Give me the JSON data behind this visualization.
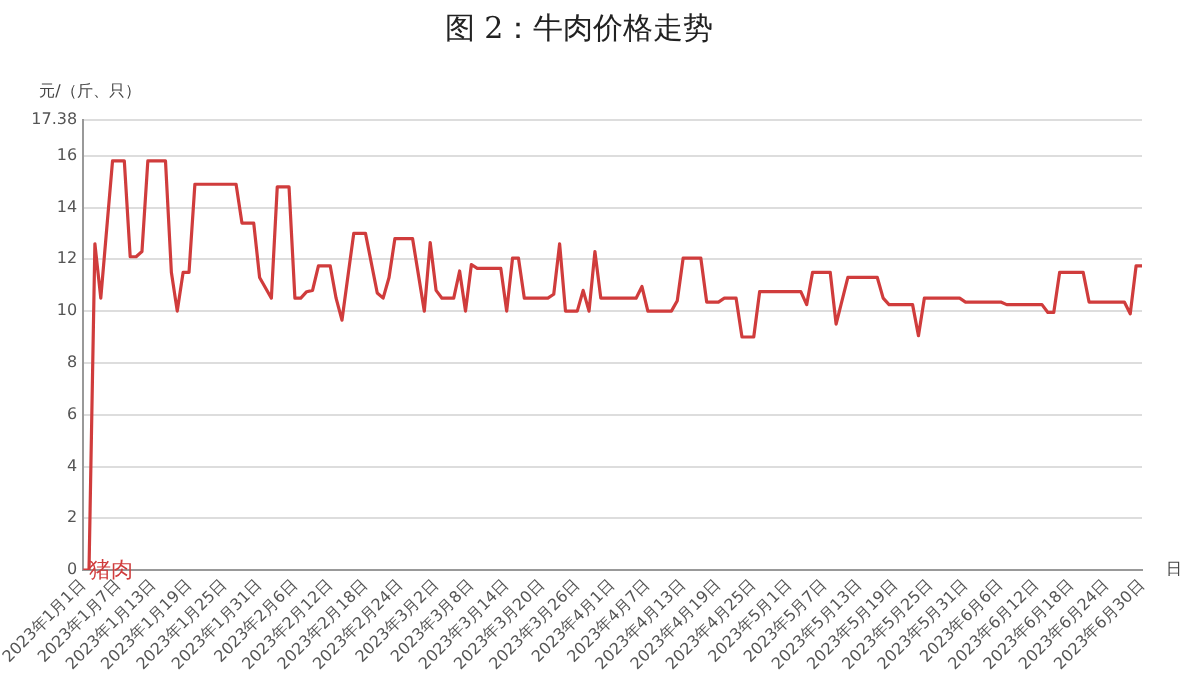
{
  "chart_data": {
    "type": "line",
    "title": "图 2：牛肉价格走势",
    "ylabel": "元/（斤、只）",
    "xlabel": "日",
    "ylim": [
      0,
      17.38
    ],
    "yticks": [
      0,
      2,
      4,
      6,
      8,
      10,
      12,
      14,
      16,
      17.38
    ],
    "xlim": [
      "2023-01-01",
      "2023-06-30"
    ],
    "xticks": [
      {
        "value": "2023-01-01",
        "label": "2023年1月1日"
      },
      {
        "value": "2023-01-07",
        "label": "2023年1月7日"
      },
      {
        "value": "2023-01-13",
        "label": "2023年1月13日"
      },
      {
        "value": "2023-01-19",
        "label": "2023年1月19日"
      },
      {
        "value": "2023-01-25",
        "label": "2023年1月25日"
      },
      {
        "value": "2023-01-31",
        "label": "2023年1月31日"
      },
      {
        "value": "2023-02-06",
        "label": "2023年2月6日"
      },
      {
        "value": "2023-02-12",
        "label": "2023年2月12日"
      },
      {
        "value": "2023-02-18",
        "label": "2023年2月18日"
      },
      {
        "value": "2023-02-24",
        "label": "2023年2月24日"
      },
      {
        "value": "2023-03-02",
        "label": "2023年3月2日"
      },
      {
        "value": "2023-03-08",
        "label": "2023年3月8日"
      },
      {
        "value": "2023-03-14",
        "label": "2023年3月14日"
      },
      {
        "value": "2023-03-20",
        "label": "2023年3月20日"
      },
      {
        "value": "2023-03-26",
        "label": "2023年3月26日"
      },
      {
        "value": "2023-04-01",
        "label": "2023年4月1日"
      },
      {
        "value": "2023-04-07",
        "label": "2023年4月7日"
      },
      {
        "value": "2023-04-13",
        "label": "2023年4月13日"
      },
      {
        "value": "2023-04-19",
        "label": "2023年4月19日"
      },
      {
        "value": "2023-04-25",
        "label": "2023年4月25日"
      },
      {
        "value": "2023-05-01",
        "label": "2023年5月1日"
      },
      {
        "value": "2023-05-07",
        "label": "2023年5月7日"
      },
      {
        "value": "2023-05-13",
        "label": "2023年5月13日"
      },
      {
        "value": "2023-05-19",
        "label": "2023年5月19日"
      },
      {
        "value": "2023-05-25",
        "label": "2023年5月25日"
      },
      {
        "value": "2023-05-31",
        "label": "2023年5月31日"
      },
      {
        "value": "2023-06-06",
        "label": "2023年6月6日"
      },
      {
        "value": "2023-06-12",
        "label": "2023年6月12日"
      },
      {
        "value": "2023-06-18",
        "label": "2023年6月18日"
      },
      {
        "value": "2023-06-24",
        "label": "2023年6月24日"
      },
      {
        "value": "2023-06-30",
        "label": "2023年6月30日"
      }
    ],
    "grid": "y",
    "legend": false,
    "marker": "none",
    "line_style": "solid",
    "x": [
      "2023-01-01",
      "2023-01-02",
      "2023-01-03",
      "2023-01-04",
      "2023-01-06",
      "2023-01-08",
      "2023-01-09",
      "2023-01-10",
      "2023-01-11",
      "2023-01-12",
      "2023-01-15",
      "2023-01-16",
      "2023-01-17",
      "2023-01-18",
      "2023-01-19",
      "2023-01-20",
      "2023-01-27",
      "2023-01-28",
      "2023-01-30",
      "2023-01-31",
      "2023-02-02",
      "2023-02-03",
      "2023-02-05",
      "2023-02-06",
      "2023-02-07",
      "2023-02-08",
      "2023-02-09",
      "2023-02-10",
      "2023-02-12",
      "2023-02-13",
      "2023-02-14",
      "2023-02-16",
      "2023-02-18",
      "2023-02-20",
      "2023-02-21",
      "2023-02-22",
      "2023-02-23",
      "2023-02-26",
      "2023-02-28",
      "2023-03-01",
      "2023-03-02",
      "2023-03-03",
      "2023-03-05",
      "2023-03-06",
      "2023-03-07",
      "2023-03-08",
      "2023-03-09",
      "2023-03-13",
      "2023-03-14",
      "2023-03-15",
      "2023-03-16",
      "2023-03-17",
      "2023-03-21",
      "2023-03-22",
      "2023-03-23",
      "2023-03-24",
      "2023-03-26",
      "2023-03-27",
      "2023-03-28",
      "2023-03-29",
      "2023-03-30",
      "2023-04-05",
      "2023-04-06",
      "2023-04-07",
      "2023-04-11",
      "2023-04-12",
      "2023-04-13",
      "2023-04-16",
      "2023-04-17",
      "2023-04-19",
      "2023-04-20",
      "2023-04-22",
      "2023-04-23",
      "2023-04-25",
      "2023-04-26",
      "2023-05-03",
      "2023-05-04",
      "2023-05-05",
      "2023-05-08",
      "2023-05-09",
      "2023-05-11",
      "2023-05-16",
      "2023-05-17",
      "2023-05-18",
      "2023-05-22",
      "2023-05-23",
      "2023-05-24",
      "2023-05-30",
      "2023-05-31",
      "2023-06-06",
      "2023-06-07",
      "2023-06-13",
      "2023-06-14",
      "2023-06-15",
      "2023-06-16",
      "2023-06-20",
      "2023-06-21",
      "2023-06-27",
      "2023-06-28",
      "2023-06-29",
      "2023-06-30"
    ],
    "series": [
      {
        "name": "猪肉",
        "color": "#d03c3c",
        "values": [
          0,
          0,
          12.6,
          10.5,
          15.8,
          15.8,
          12.1,
          12.1,
          12.3,
          15.8,
          15.8,
          11.5,
          10.0,
          11.5,
          11.5,
          14.9,
          14.9,
          13.4,
          13.4,
          11.3,
          10.5,
          14.8,
          14.8,
          10.5,
          10.5,
          10.75,
          10.8,
          11.75,
          11.75,
          10.5,
          9.65,
          13.0,
          13.0,
          10.7,
          10.5,
          11.3,
          12.8,
          12.8,
          10.0,
          12.65,
          10.8,
          10.5,
          10.5,
          11.55,
          10.0,
          11.8,
          11.65,
          11.65,
          10.0,
          12.05,
          12.05,
          10.5,
          10.5,
          10.65,
          12.6,
          10.0,
          10.0,
          10.8,
          10.0,
          12.3,
          10.5,
          10.5,
          10.95,
          10.0,
          10.0,
          10.4,
          12.05,
          12.05,
          10.35,
          10.35,
          10.5,
          10.5,
          9.0,
          9.0,
          10.75,
          10.75,
          10.25,
          11.5,
          11.5,
          9.5,
          11.3,
          11.3,
          10.5,
          10.25,
          10.25,
          9.05,
          10.5,
          10.5,
          10.35,
          10.35,
          10.25,
          10.25,
          9.95,
          9.95,
          11.5,
          11.5,
          10.35,
          10.35,
          9.9,
          11.75,
          11.75
        ]
      }
    ]
  }
}
